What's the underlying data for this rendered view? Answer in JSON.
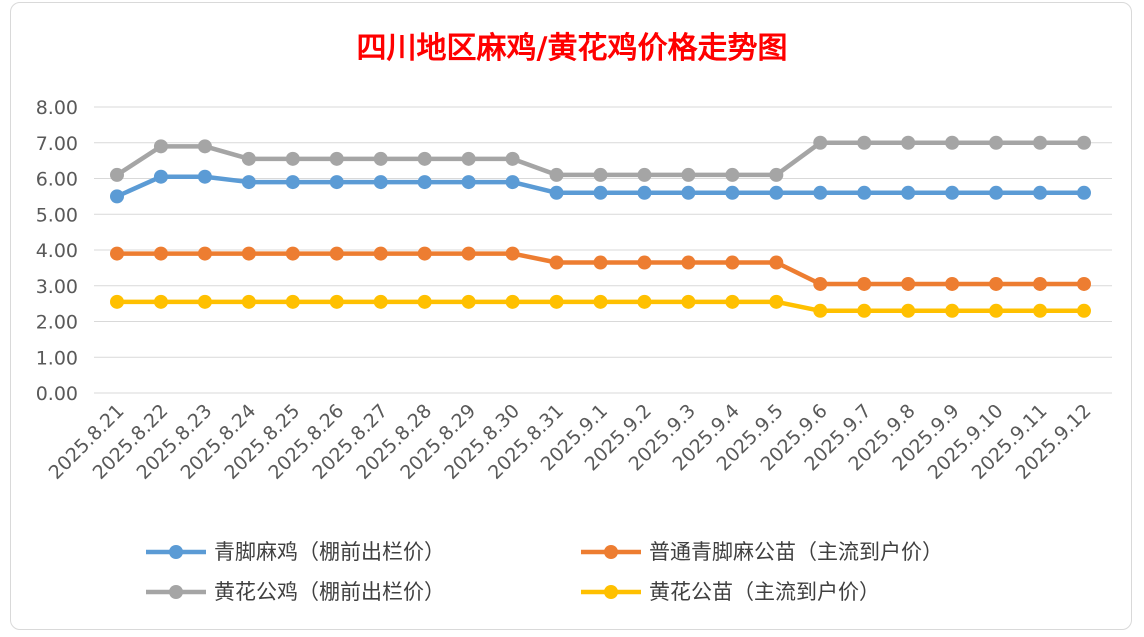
{
  "chart_data": {
    "type": "line",
    "title": "四川地区麻鸡/黄花鸡价格走势图",
    "title_color": "#ff0000",
    "xlabel": "",
    "ylabel": "",
    "ylim": [
      0,
      8
    ],
    "yticks": [
      "0.00",
      "1.00",
      "2.00",
      "3.00",
      "4.00",
      "5.00",
      "6.00",
      "7.00",
      "8.00"
    ],
    "grid": true,
    "legend_position": "bottom",
    "categories": [
      "2025.8.21",
      "2025.8.22",
      "2025.8.23",
      "2025.8.24",
      "2025.8.25",
      "2025.8.26",
      "2025.8.27",
      "2025.8.28",
      "2025.8.29",
      "2025.8.30",
      "2025.8.31",
      "2025.9.1",
      "2025.9.2",
      "2025.9.3",
      "2025.9.4",
      "2025.9.5",
      "2025.9.6",
      "2025.9.7",
      "2025.9.8",
      "2025.9.9",
      "2025.9.10",
      "2025.9.11",
      "2025.9.12"
    ],
    "series": [
      {
        "name": "青脚麻鸡（棚前出栏价）",
        "color": "#5b9bd5",
        "values": [
          5.5,
          6.05,
          6.05,
          5.9,
          5.9,
          5.9,
          5.9,
          5.9,
          5.9,
          5.9,
          5.6,
          5.6,
          5.6,
          5.6,
          5.6,
          5.6,
          5.6,
          5.6,
          5.6,
          5.6,
          5.6,
          5.6,
          5.6
        ]
      },
      {
        "name": "普通青脚麻公苗（主流到户价）",
        "color": "#ed7d31",
        "values": [
          3.9,
          3.9,
          3.9,
          3.9,
          3.9,
          3.9,
          3.9,
          3.9,
          3.9,
          3.9,
          3.65,
          3.65,
          3.65,
          3.65,
          3.65,
          3.65,
          3.05,
          3.05,
          3.05,
          3.05,
          3.05,
          3.05,
          3.05
        ]
      },
      {
        "name": "黄花公鸡（棚前出栏价）",
        "color": "#a5a5a5",
        "values": [
          6.1,
          6.9,
          6.9,
          6.55,
          6.55,
          6.55,
          6.55,
          6.55,
          6.55,
          6.55,
          6.1,
          6.1,
          6.1,
          6.1,
          6.1,
          6.1,
          7.0,
          7.0,
          7.0,
          7.0,
          7.0,
          7.0,
          7.0
        ]
      },
      {
        "name": "黄花公苗（主流到户价）",
        "color": "#ffc000",
        "values": [
          2.55,
          2.55,
          2.55,
          2.55,
          2.55,
          2.55,
          2.55,
          2.55,
          2.55,
          2.55,
          2.55,
          2.55,
          2.55,
          2.55,
          2.55,
          2.55,
          2.3,
          2.3,
          2.3,
          2.3,
          2.3,
          2.3,
          2.3
        ]
      }
    ]
  }
}
